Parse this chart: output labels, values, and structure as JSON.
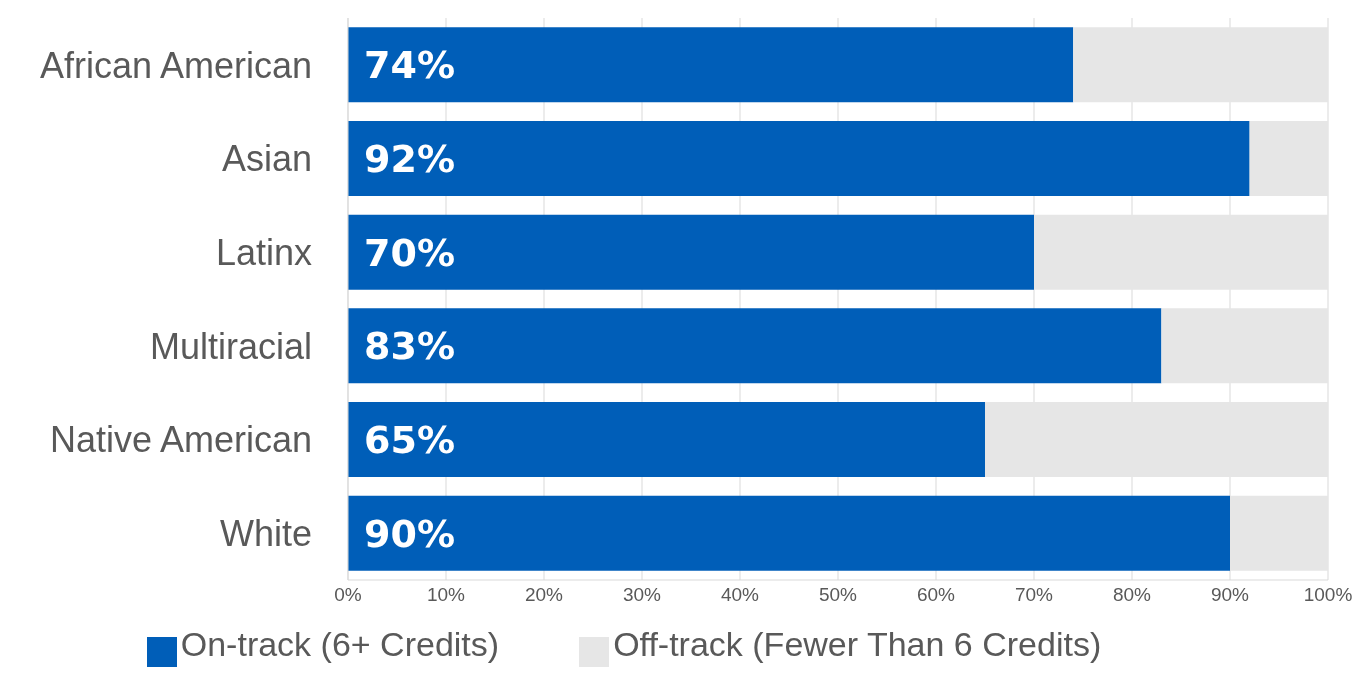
{
  "chart_data": {
    "type": "bar",
    "orientation": "horizontal",
    "stacked": true,
    "categories": [
      "African American",
      "Asian",
      "Latinx",
      "Multiracial",
      "Native American",
      "White"
    ],
    "series": [
      {
        "name": "On-track (6+ Credits)",
        "color": "#005eb8",
        "values": [
          74,
          92,
          70,
          83,
          65,
          90
        ],
        "value_labels": [
          "74%",
          "92%",
          "70%",
          "83%",
          "65%",
          "90%"
        ]
      },
      {
        "name": "Off-track (Fewer Than 6 Credits)",
        "color": "#e6e6e6",
        "values": [
          26,
          8,
          30,
          17,
          35,
          10
        ]
      }
    ],
    "xlim": [
      0,
      100
    ],
    "xticks": [
      {
        "value": 0,
        "label": "0%"
      },
      {
        "value": 10,
        "label": "10%"
      },
      {
        "value": 20,
        "label": "20%"
      },
      {
        "value": 30,
        "label": "30%"
      },
      {
        "value": 40,
        "label": "40%"
      },
      {
        "value": 50,
        "label": "50%"
      },
      {
        "value": 60,
        "label": "60%"
      },
      {
        "value": 70,
        "label": "70%"
      },
      {
        "value": 80,
        "label": "80%"
      },
      {
        "value": 90,
        "label": "90%"
      },
      {
        "value": 100,
        "label": "100%"
      }
    ],
    "grid": "x",
    "legend": "bottom"
  }
}
